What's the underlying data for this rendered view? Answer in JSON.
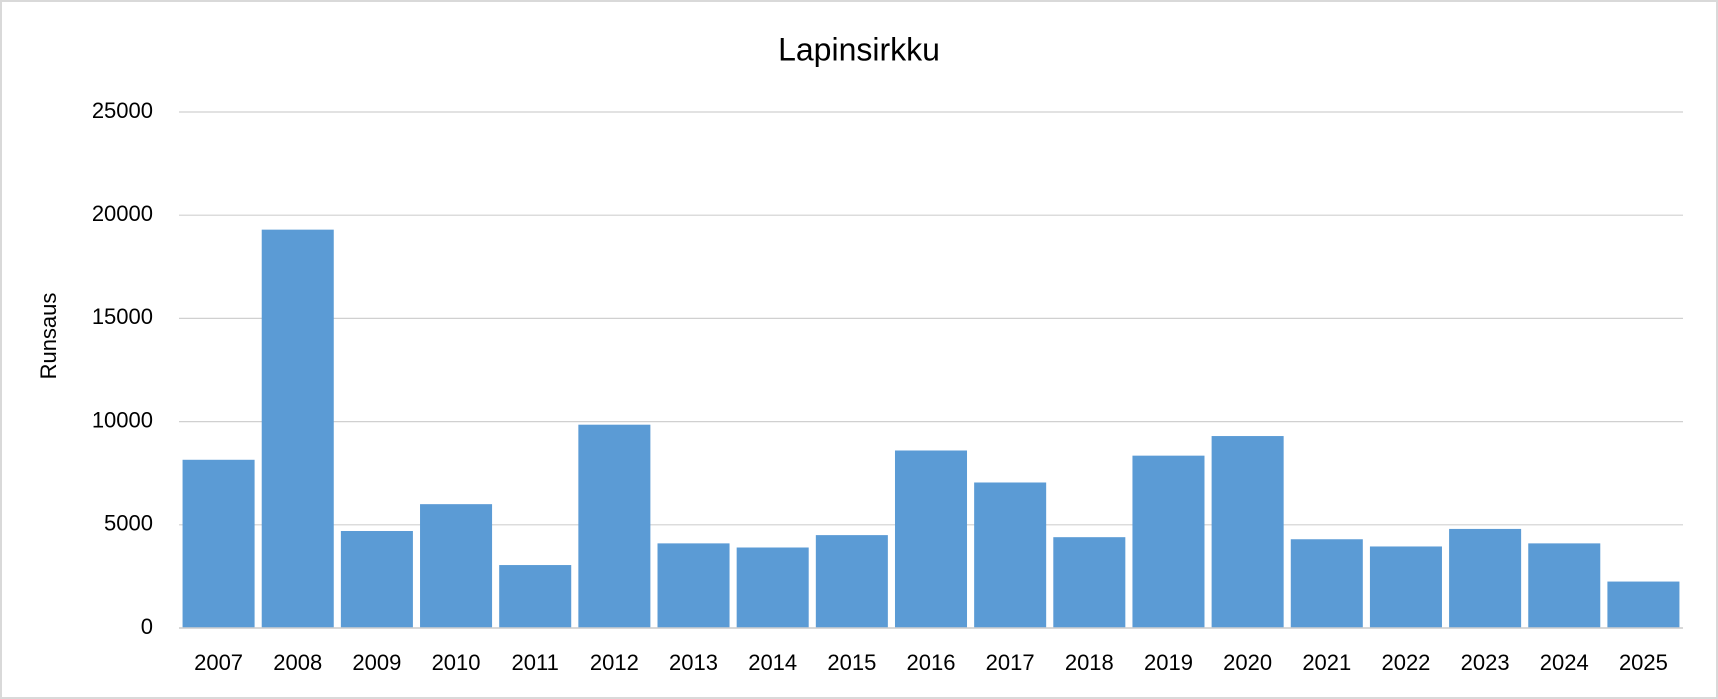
{
  "chart_data": {
    "type": "bar",
    "title": "Lapinsirkku",
    "y_label": "Runsaus",
    "categories": [
      "2007",
      "2008",
      "2009",
      "2010",
      "2011",
      "2012",
      "2013",
      "2014",
      "2015",
      "2016",
      "2017",
      "2018",
      "2019",
      "2020",
      "2021",
      "2022",
      "2023",
      "2024",
      "2025"
    ],
    "values": [
      8150,
      19300,
      4700,
      6000,
      3050,
      9850,
      4100,
      3900,
      4500,
      8600,
      7050,
      4400,
      8350,
      9300,
      4300,
      3950,
      4800,
      4100,
      2250
    ],
    "color": "#5b9bd5",
    "ylim": [
      0,
      25000
    ],
    "yticks": [
      0,
      5000,
      10000,
      15000,
      20000,
      25000
    ],
    "grid": true
  }
}
